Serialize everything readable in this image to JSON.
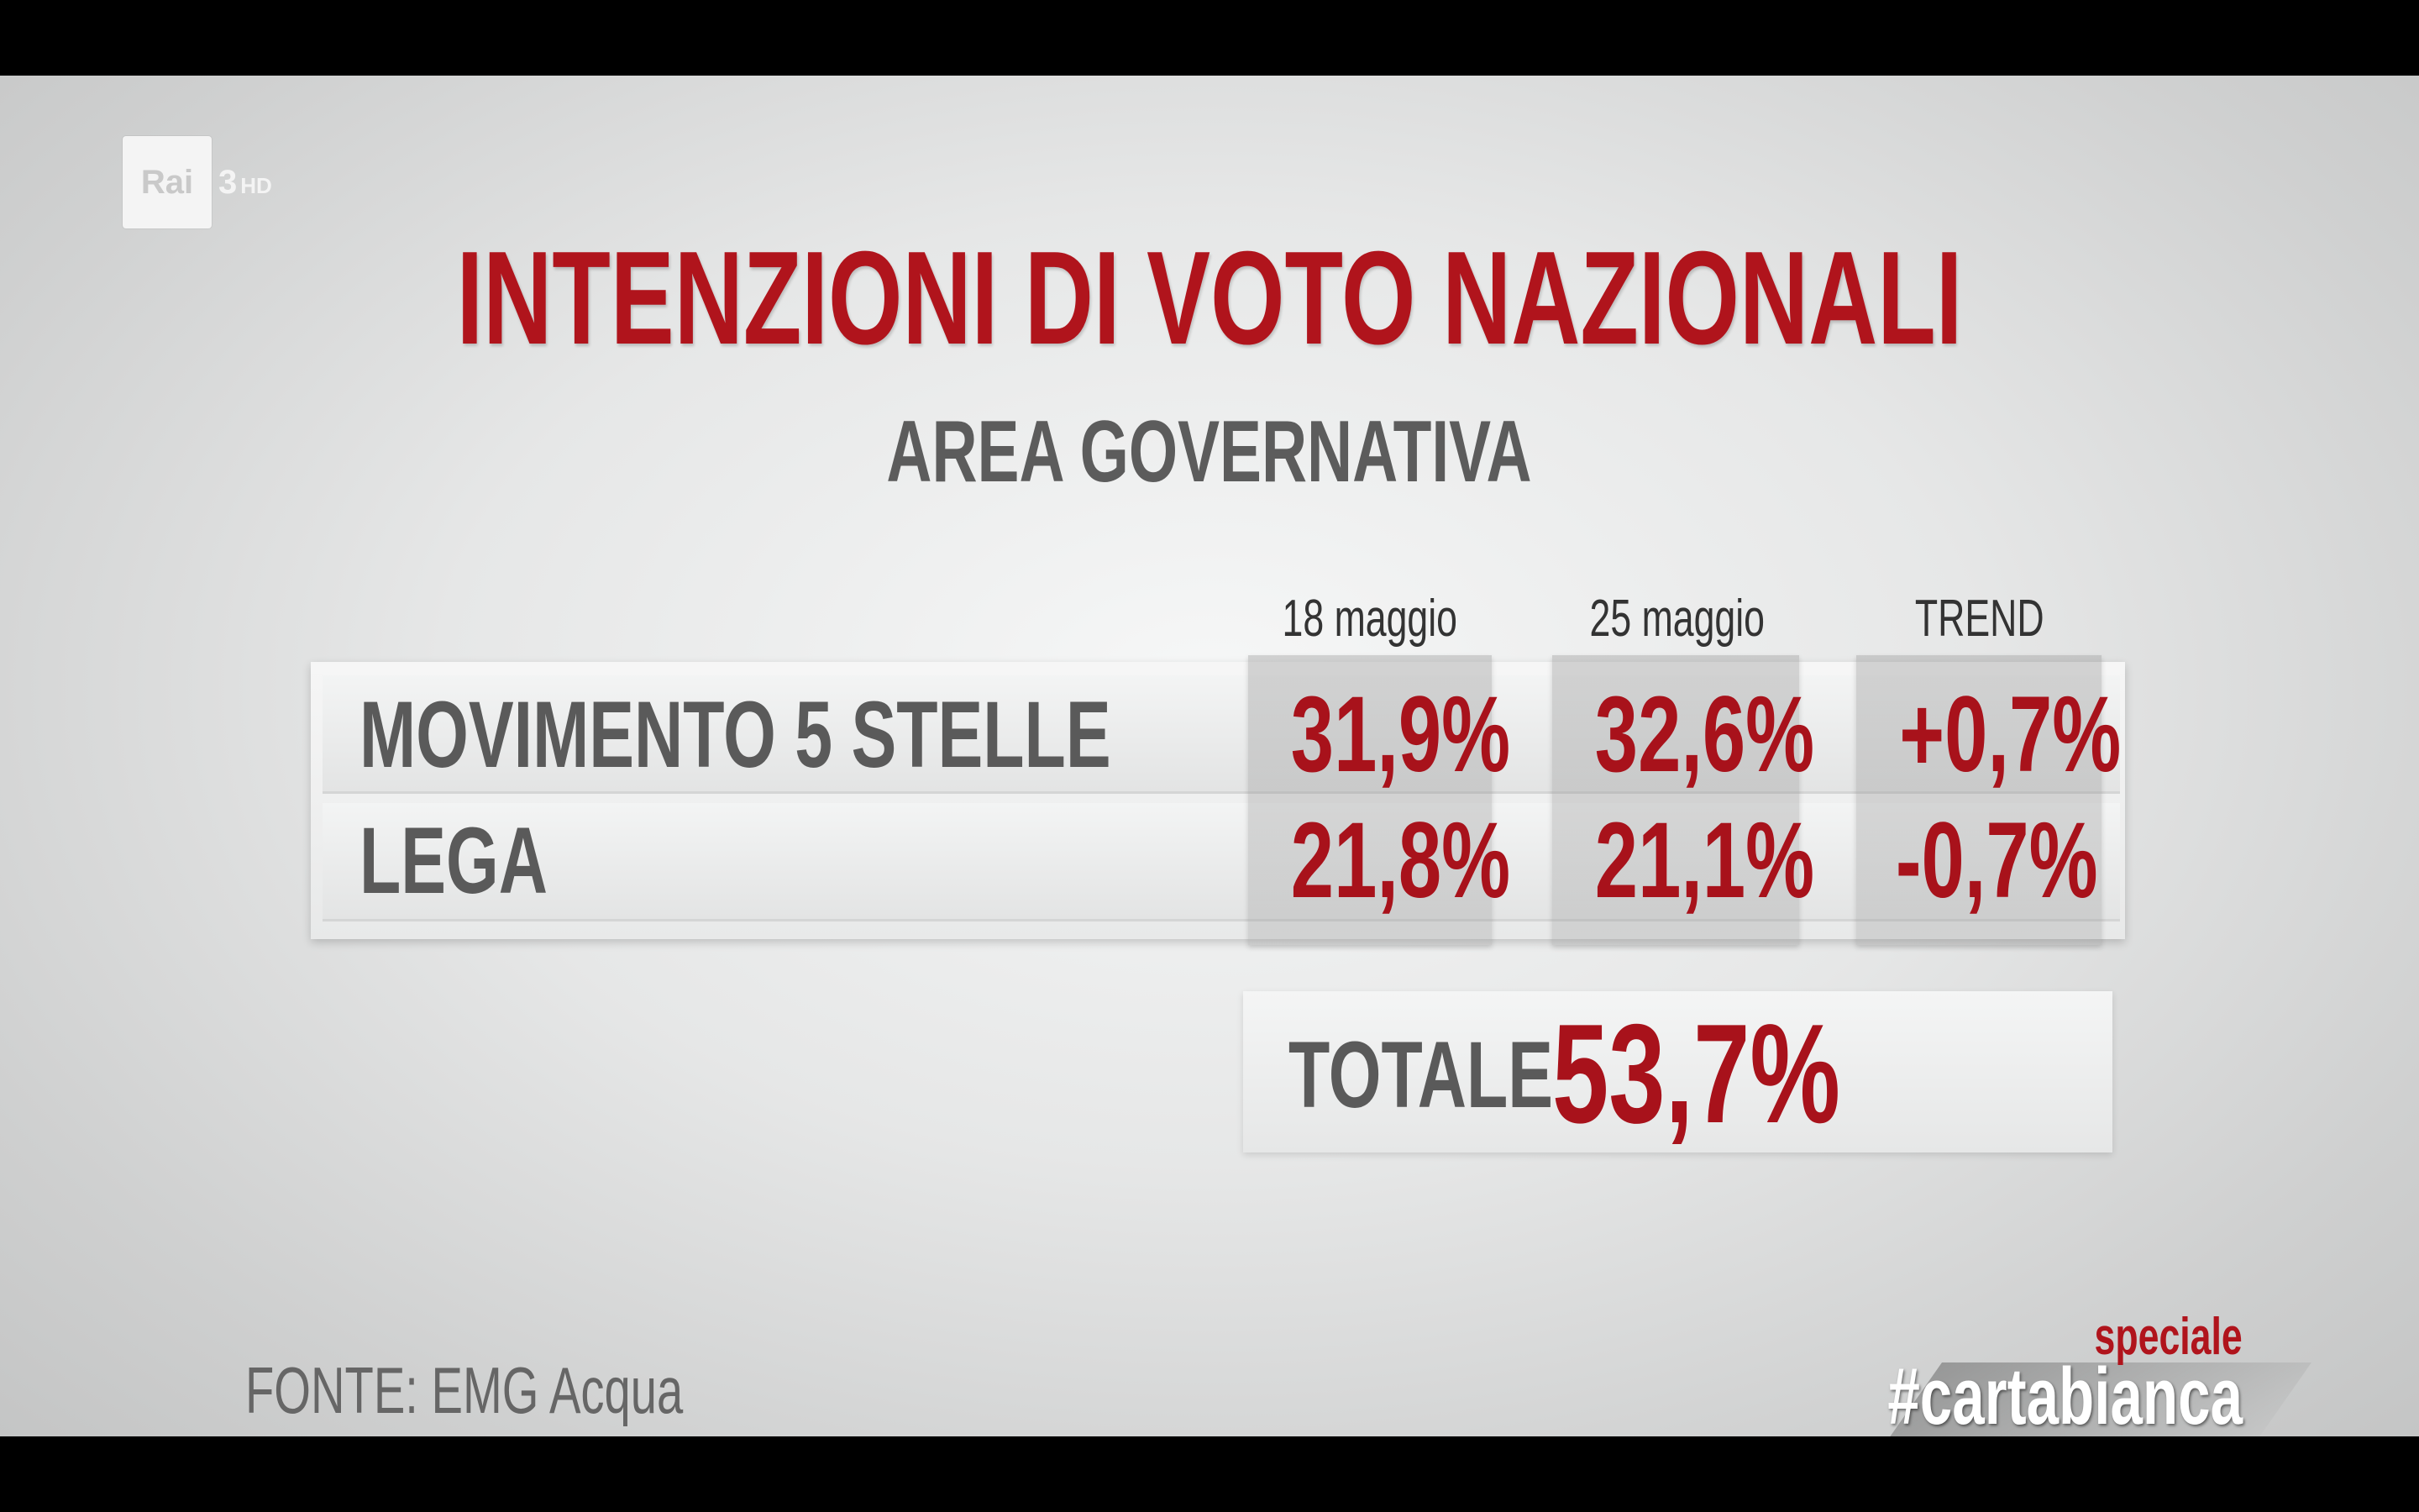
{
  "broadcast": {
    "channel_logo": "Rai",
    "channel_number": "3",
    "channel_suffix": "HD",
    "program_small": "speciale",
    "program_main": "#cartabianca"
  },
  "chart_data": {
    "type": "table",
    "title": "INTENZIONI DI VOTO NAZIONALI",
    "subtitle": "AREA GOVERNATIVA",
    "columns": [
      "18 maggio",
      "25 maggio",
      "TREND"
    ],
    "rows": [
      {
        "party": "MOVIMENTO 5 STELLE",
        "values": [
          "31,9%",
          "32,6%",
          "+0,7%"
        ]
      },
      {
        "party": "LEGA",
        "values": [
          "21,8%",
          "21,1%",
          "-0,7%"
        ]
      }
    ],
    "total_label": "TOTALE",
    "total_value": "53,7%",
    "source": "FONTE: EMG Acqua"
  },
  "colors": {
    "accent_red": "#a8121b",
    "label_gray": "#5a5a5a"
  }
}
